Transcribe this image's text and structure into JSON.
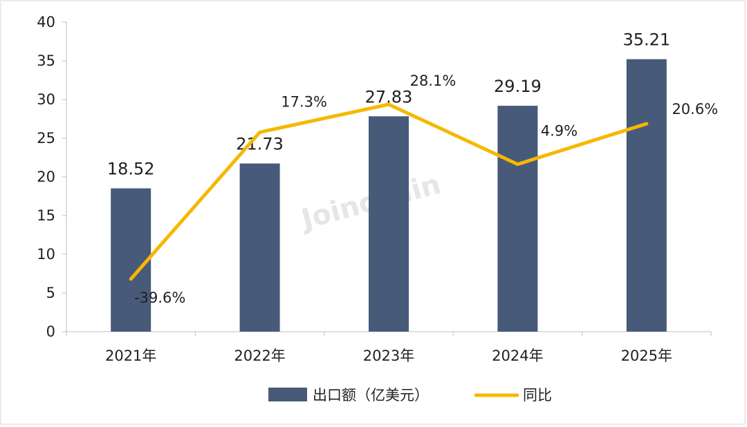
{
  "watermark": "Joinchain",
  "chart_data": {
    "type": "bar",
    "categories": [
      "2021年",
      "2022年",
      "2023年",
      "2024年",
      "2025年"
    ],
    "ylim": [
      0,
      40
    ],
    "yticks": [
      0,
      5,
      10,
      15,
      20,
      25,
      30,
      35,
      40
    ],
    "grid": false,
    "legend_position": "bottom",
    "series": [
      {
        "name": "出口额（亿美元）",
        "type": "bar",
        "color": "#485a7a",
        "values": [
          18.52,
          21.73,
          27.83,
          29.19,
          35.21
        ],
        "labels": [
          "18.52",
          "21.73",
          "27.83",
          "29.19",
          "35.21"
        ]
      },
      {
        "name": "同比",
        "type": "line",
        "color": "#f5b800",
        "values": [
          -39.6,
          17.3,
          28.1,
          4.9,
          20.6
        ],
        "labels": [
          "-39.6%",
          "17.3%",
          "28.1%",
          "4.9%",
          "20.6%"
        ]
      }
    ]
  }
}
